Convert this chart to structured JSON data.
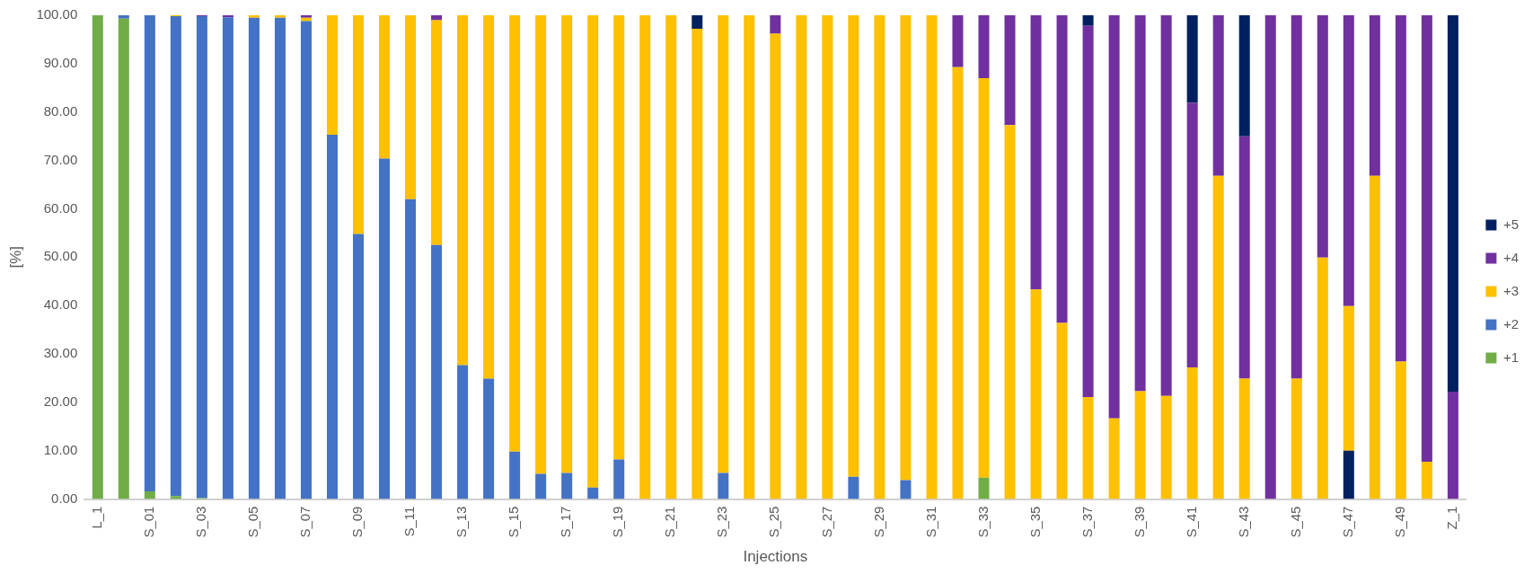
{
  "chart_data": {
    "type": "bar",
    "stacked": true,
    "xlabel": "Injections",
    "ylabel": "[%]",
    "categories": [
      "L_1",
      null,
      "S_01",
      null,
      "S_03",
      null,
      "S_05",
      null,
      "S_07",
      null,
      "S_09",
      null,
      "S_11",
      null,
      "S_13",
      null,
      "S_15",
      null,
      "S_17",
      null,
      "S_19",
      null,
      "S_21",
      null,
      "S_23",
      null,
      "S_25",
      null,
      "S_27",
      null,
      "S_29",
      null,
      "S_31",
      null,
      "S_33",
      null,
      "S_35",
      null,
      "S_37",
      null,
      "S_39",
      null,
      "S_41",
      null,
      "S_43",
      null,
      "S_45",
      null,
      "S_47",
      null,
      "S_49",
      null,
      "Z_1"
    ],
    "ylim": [
      0,
      100
    ],
    "yticks": [
      {
        "value": 0,
        "label": "0.00"
      },
      {
        "value": 10,
        "label": "10.00"
      },
      {
        "value": 20,
        "label": "20.00"
      },
      {
        "value": 30,
        "label": "30.00"
      },
      {
        "value": 40,
        "label": "40.00"
      },
      {
        "value": 50,
        "label": "50.00"
      },
      {
        "value": 60,
        "label": "60.00"
      },
      {
        "value": 70,
        "label": "70.00"
      },
      {
        "value": 80,
        "label": "80.00"
      },
      {
        "value": 90,
        "label": "90.00"
      },
      {
        "value": 100,
        "label": "100.00"
      }
    ],
    "grid": false,
    "legend": "right",
    "series": [
      {
        "color": "#002060",
        "values": [
          null,
          null,
          null,
          null,
          null,
          null,
          null,
          null,
          null,
          null,
          null,
          null,
          null,
          null,
          null,
          null,
          null,
          null,
          null,
          null,
          null,
          null,
          null,
          null,
          null,
          null,
          null,
          null,
          null,
          null,
          null,
          null,
          null,
          null,
          null,
          null,
          null,
          null,
          null,
          null,
          null,
          null,
          null,
          null,
          null,
          null,
          null,
          null,
          10.0,
          null,
          null,
          null,
          null
        ]
      },
      {
        "name": "+1",
        "color": "#70ad47",
        "values": [
          100,
          99.3,
          1.6,
          0.6,
          0.2,
          null,
          null,
          null,
          null,
          null,
          null,
          null,
          null,
          null,
          null,
          null,
          null,
          null,
          null,
          null,
          null,
          null,
          null,
          null,
          null,
          null,
          null,
          null,
          null,
          null,
          null,
          null,
          null,
          null,
          4.4,
          null,
          null,
          null,
          null,
          null,
          null,
          null,
          null,
          null,
          null,
          null,
          null,
          null,
          null,
          null,
          null,
          null,
          null
        ]
      },
      {
        "name": "+2",
        "color": "#4472c4",
        "values": [
          null,
          0.7,
          98.4,
          99.2,
          99.6,
          99.6,
          99.5,
          99.5,
          98.8,
          75.3,
          54.8,
          70.4,
          62.0,
          52.5,
          27.7,
          24.9,
          9.8,
          5.2,
          5.4,
          2.4,
          8.2,
          null,
          null,
          null,
          5.4,
          null,
          null,
          null,
          null,
          4.6,
          null,
          3.9,
          null,
          null,
          null,
          null,
          null,
          null,
          null,
          null,
          null,
          null,
          null,
          null,
          null,
          null,
          null,
          null,
          null,
          null,
          null,
          null,
          null
        ]
      },
      {
        "name": "+3",
        "color": "#ffc000",
        "values": [
          null,
          null,
          null,
          0.2,
          null,
          null,
          0.5,
          0.5,
          0.7,
          24.7,
          45.2,
          29.6,
          38.0,
          46.5,
          72.3,
          75.1,
          90.2,
          94.8,
          94.6,
          97.6,
          91.8,
          100,
          100,
          97.2,
          94.6,
          100,
          96.2,
          100,
          100,
          95.4,
          100,
          96.1,
          100,
          89.3,
          82.6,
          77.3,
          43.3,
          36.4,
          21.1,
          16.7,
          22.3,
          21.3,
          27.2,
          66.8,
          24.9,
          null,
          24.9,
          49.9,
          29.9,
          66.8,
          28.4,
          7.7,
          null
        ]
      },
      {
        "name": "+4",
        "color": "#7030a0",
        "values": [
          null,
          null,
          null,
          null,
          0.2,
          0.4,
          null,
          null,
          0.5,
          null,
          null,
          null,
          null,
          1.0,
          null,
          null,
          null,
          null,
          null,
          null,
          null,
          null,
          null,
          null,
          null,
          null,
          3.8,
          null,
          null,
          null,
          null,
          null,
          null,
          10.7,
          13.0,
          22.7,
          56.7,
          63.6,
          76.7,
          83.3,
          77.7,
          78.7,
          54.7,
          33.2,
          50.1,
          100,
          75.1,
          50.1,
          60.1,
          33.2,
          71.6,
          92.3,
          22.2
        ]
      },
      {
        "name": "+5",
        "color": "#002060",
        "values": [
          null,
          null,
          null,
          null,
          null,
          null,
          null,
          null,
          null,
          null,
          null,
          null,
          null,
          null,
          null,
          null,
          null,
          null,
          null,
          null,
          null,
          null,
          null,
          2.8,
          null,
          null,
          null,
          null,
          null,
          null,
          null,
          null,
          null,
          null,
          null,
          null,
          null,
          null,
          2.2,
          null,
          null,
          null,
          18.1,
          null,
          25.0,
          null,
          null,
          null,
          null,
          null,
          null,
          null,
          77.8
        ]
      }
    ]
  }
}
